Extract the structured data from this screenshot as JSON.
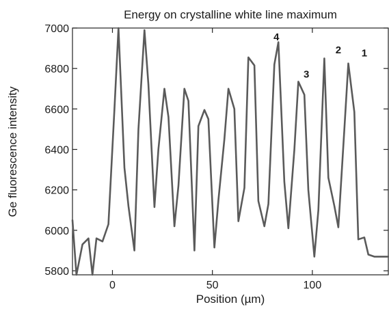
{
  "chart_data": {
    "type": "line",
    "title": "Energy on crystalline white line maximum",
    "xlabel": "Position (µm)",
    "ylabel": "Ge fluorescence intensity",
    "xlim": [
      -20,
      138
    ],
    "ylim": [
      5780,
      7000
    ],
    "xticks": [
      0,
      50,
      100
    ],
    "yticks": [
      5800,
      6000,
      6200,
      6400,
      6600,
      6800,
      7000
    ],
    "grid": false,
    "legend": "none",
    "series": [
      {
        "color": "#5a5a5a",
        "x": [
          -20,
          -18,
          -15,
          -12,
          -10,
          -8,
          -5,
          -2,
          1,
          3,
          6,
          8,
          11,
          13,
          16,
          18,
          21,
          23,
          26,
          28,
          31,
          33,
          36,
          38,
          41,
          43,
          46,
          48,
          51,
          53,
          56,
          58,
          61,
          63,
          66,
          68,
          71,
          73,
          76,
          78,
          81,
          83,
          86,
          88,
          91,
          93,
          96,
          98,
          101,
          103,
          106,
          108,
          111,
          113,
          116,
          118,
          121,
          123,
          126,
          128,
          131,
          133,
          136,
          138
        ],
        "y": [
          6050,
          5780,
          5930,
          5960,
          5780,
          5960,
          5945,
          6030,
          6600,
          7010,
          6310,
          6120,
          5900,
          6500,
          6990,
          6720,
          6115,
          6400,
          6700,
          6560,
          6020,
          6220,
          6700,
          6640,
          5900,
          6515,
          6595,
          6550,
          5915,
          6150,
          6450,
          6700,
          6600,
          6045,
          6210,
          6855,
          6815,
          6145,
          6020,
          6130,
          6820,
          6930,
          6240,
          6010,
          6400,
          6735,
          6670,
          6200,
          5870,
          6100,
          6850,
          6260,
          6120,
          6015,
          6500,
          6825,
          6585,
          5955,
          5965,
          5880,
          5870,
          5870,
          5870,
          5870
        ]
      }
    ],
    "annotations": [
      {
        "text": "4",
        "x": 82,
        "y": 6940
      },
      {
        "text": "3",
        "x": 97,
        "y": 6755
      },
      {
        "text": "2",
        "x": 113,
        "y": 6875
      },
      {
        "text": "1",
        "x": 126,
        "y": 6860
      }
    ]
  }
}
